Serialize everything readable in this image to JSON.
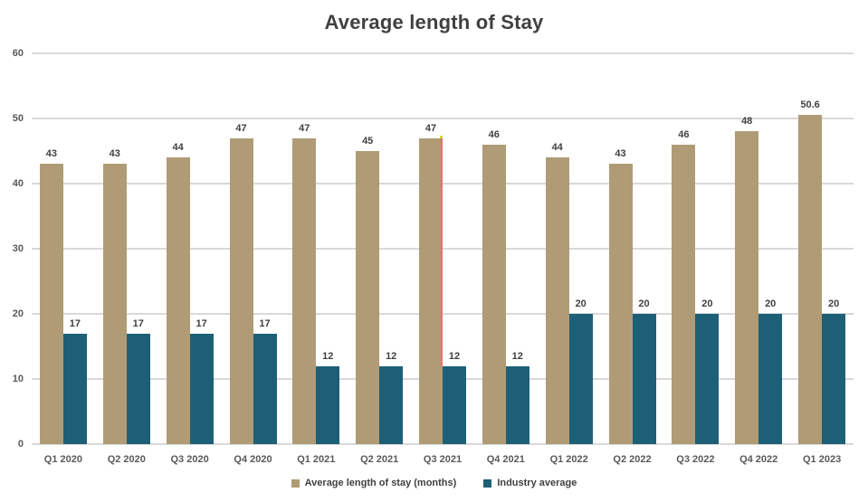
{
  "chart_data": {
    "type": "bar",
    "title": "Average length of Stay",
    "categories": [
      "Q1 2020",
      "Q2 2020",
      "Q3 2020",
      "Q4 2020",
      "Q1 2021",
      "Q2 2021",
      "Q3 2021",
      "Q4 2021",
      "Q1 2022",
      "Q2 2022",
      "Q3 2022",
      "Q4 2022",
      "Q1 2023"
    ],
    "series": [
      {
        "name": "Average length of stay (months)",
        "color": "#AF9B76",
        "values": [
          43,
          43,
          44,
          47,
          47,
          45,
          47,
          46,
          44,
          43,
          46,
          48,
          50.6
        ]
      },
      {
        "name": "Industry average",
        "color": "#1D5F77",
        "values": [
          17,
          17,
          17,
          17,
          12,
          12,
          12,
          12,
          20,
          20,
          20,
          20,
          20
        ]
      }
    ],
    "ylim": [
      0,
      60
    ],
    "ytick_step": 10,
    "yticks": [
      0,
      10,
      20,
      30,
      40,
      50,
      60
    ],
    "grid": "horizontal",
    "legend_position": "bottom",
    "colors": {
      "title_text": "#404040",
      "data_label_text": "#404040",
      "axis_tick_text": "#595959",
      "gridline": "#D9D9D9",
      "background": "#FFFFFF"
    }
  },
  "annotation": {
    "description": "thin marker line on right edge of Q3 2021 tan bar",
    "category": "Q3 2021",
    "from_value": 47,
    "to_value": 12,
    "line_color": "#F26D6D",
    "dot_color": "#DCD53C"
  }
}
